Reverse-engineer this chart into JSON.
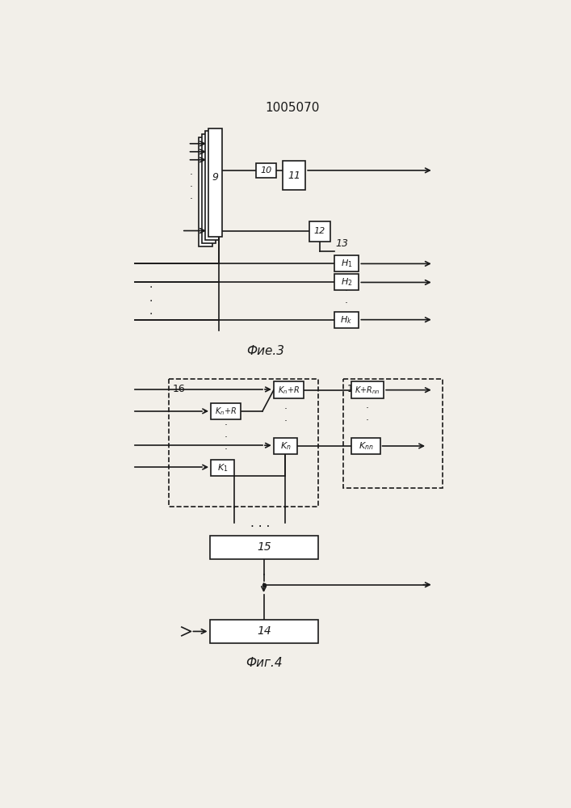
{
  "title": "1005070",
  "fig3_label": "Фие.3",
  "fig4_label": "Фиг.4",
  "bg_color": "#f2efe9",
  "line_color": "#1a1a1a"
}
